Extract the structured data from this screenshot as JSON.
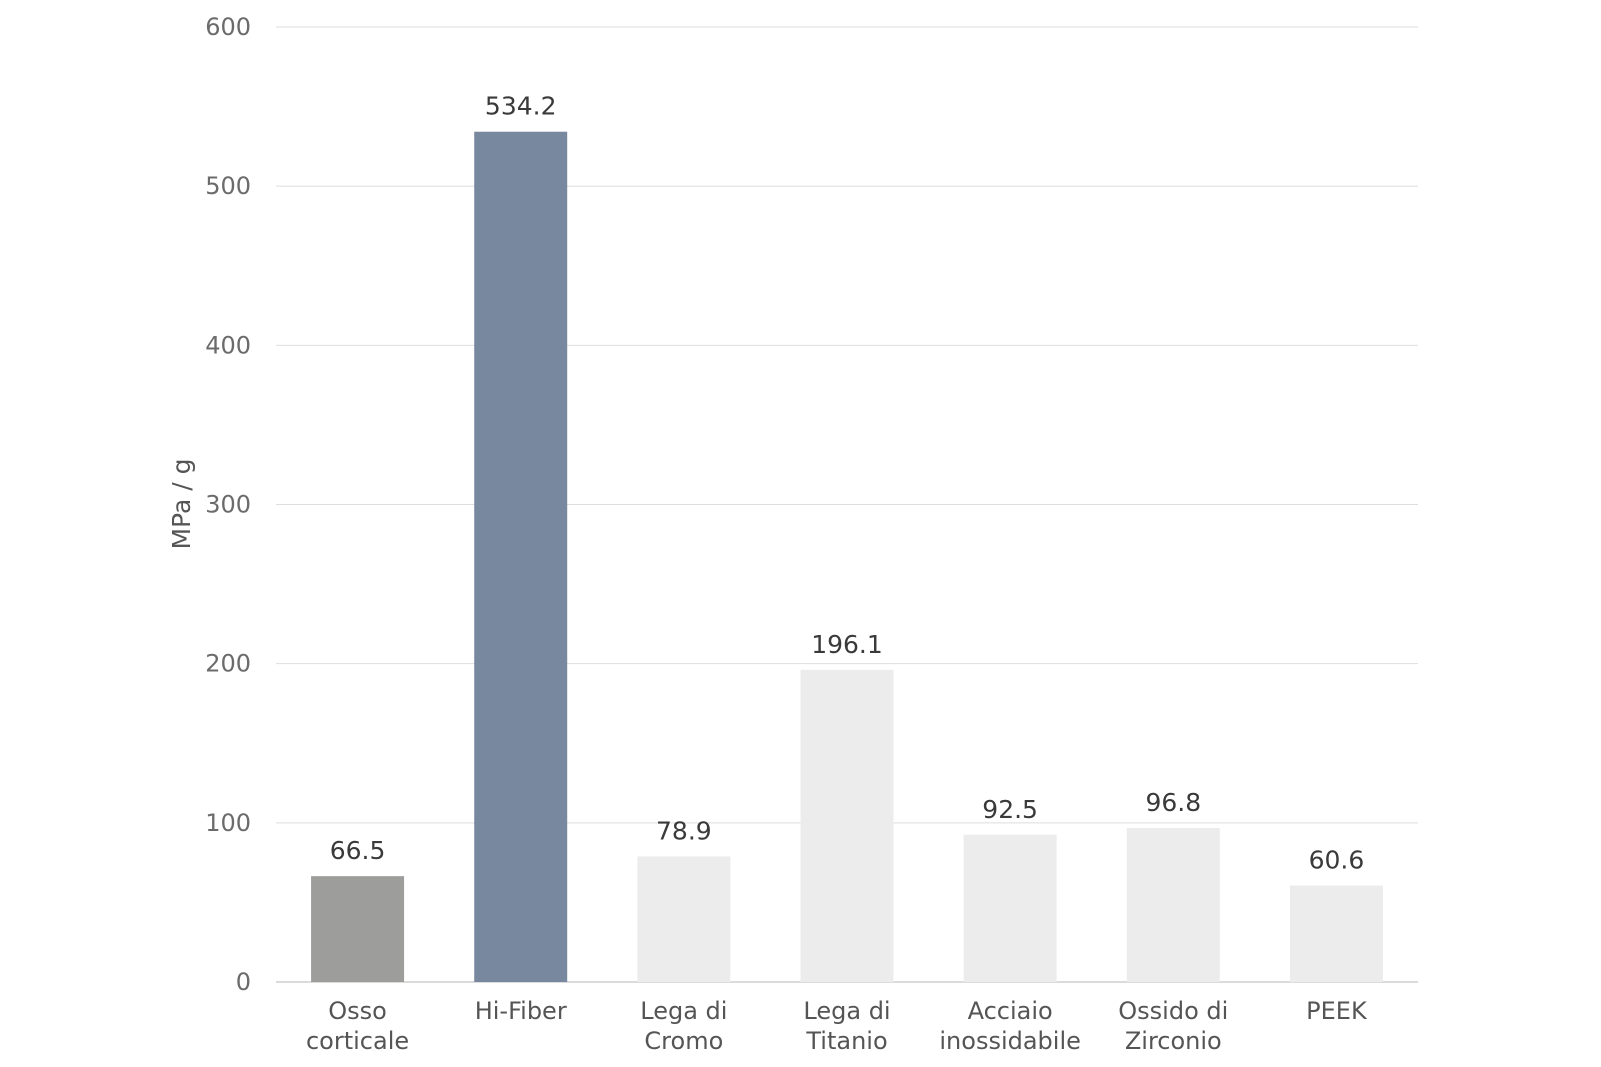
{
  "chart_data": {
    "type": "bar",
    "title": "",
    "xlabel": "",
    "ylabel": "MPa / g",
    "ylim": [
      0,
      600
    ],
    "yticks": [
      0,
      100,
      200,
      300,
      400,
      500,
      600
    ],
    "grid": true,
    "legend": "none",
    "categories": [
      [
        "Osso",
        "corticale"
      ],
      [
        "Hi-Fiber"
      ],
      [
        "Lega di",
        "Cromo"
      ],
      [
        "Lega di",
        "Titanio"
      ],
      [
        "Acciaio",
        "inossidabile"
      ],
      [
        "Ossido di",
        "Zirconio"
      ],
      [
        "PEEK"
      ]
    ],
    "values": [
      66.5,
      534.2,
      78.9,
      196.1,
      92.5,
      96.8,
      60.6
    ],
    "data_labels": [
      "66.5",
      "534.2",
      "78.9",
      "196.1",
      "92.5",
      "96.8",
      "60.6"
    ],
    "colors": [
      "#9d9d9b",
      "#78899f",
      "#ececec",
      "#ececec",
      "#ececec",
      "#ececec",
      "#ececec"
    ],
    "gridline_color": "#dedede",
    "baseline_color": "#cfcfcf"
  }
}
